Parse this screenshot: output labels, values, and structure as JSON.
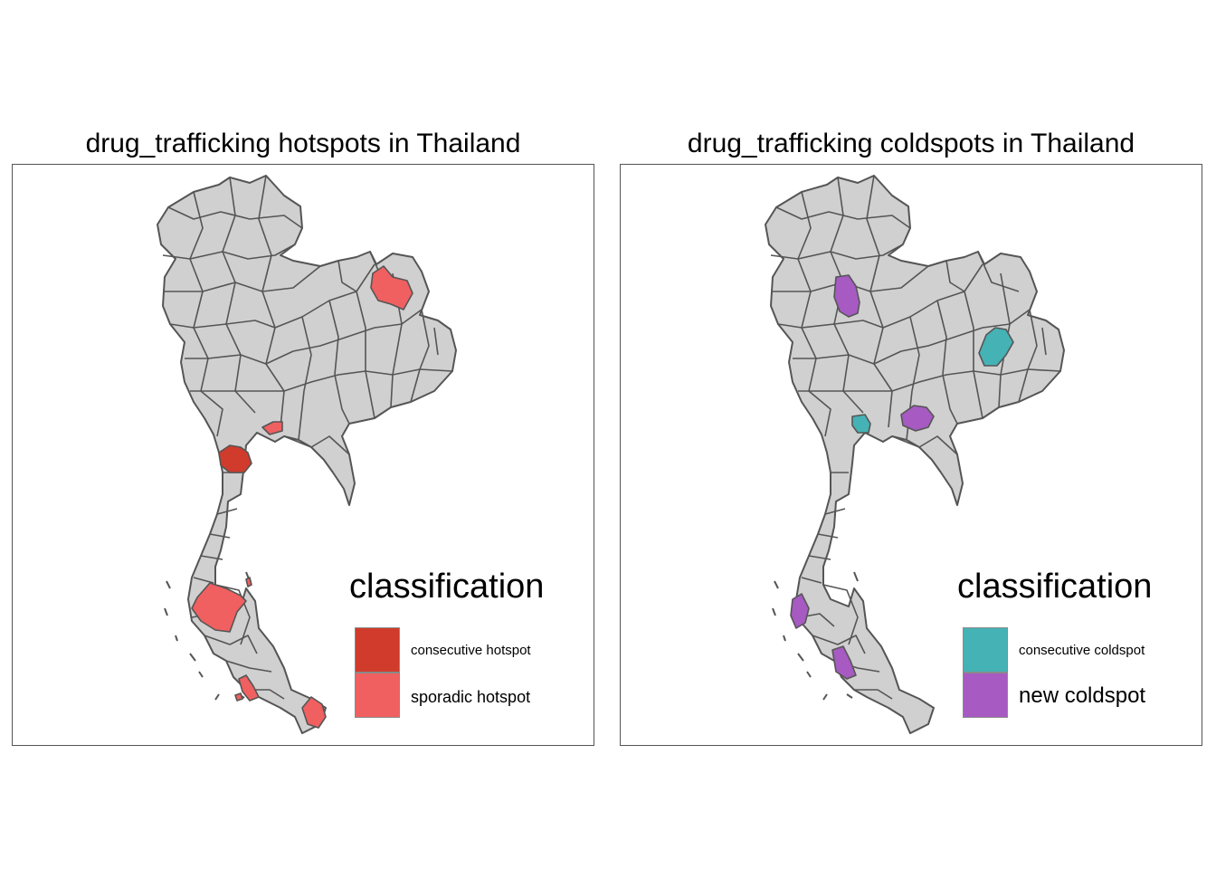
{
  "maps": [
    {
      "title": "drug_trafficking hotspots in Thailand",
      "legend": {
        "title": "classification",
        "items": [
          {
            "label": "consecutive hotspot",
            "color": "#d03b2c"
          },
          {
            "label": "sporadic hotspot",
            "color": "#f06060"
          }
        ]
      },
      "highlighted_provinces": [
        {
          "region": "northeast-north",
          "class": "sporadic hotspot"
        },
        {
          "region": "central-east-small",
          "class": "sporadic hotspot"
        },
        {
          "region": "west-central",
          "class": "consecutive hotspot"
        },
        {
          "region": "south-upper",
          "class": "sporadic hotspot"
        },
        {
          "region": "south-lower-west",
          "class": "sporadic hotspot"
        },
        {
          "region": "south-far-east",
          "class": "sporadic hotspot"
        }
      ]
    },
    {
      "title": "drug_trafficking coldspots in Thailand",
      "legend": {
        "title": "classification",
        "items": [
          {
            "label": "consecutive coldspot",
            "color": "#45b2b5"
          },
          {
            "label": "new coldspot",
            "color": "#a65ac2"
          }
        ]
      },
      "highlighted_provinces": [
        {
          "region": "north-central",
          "class": "new coldspot"
        },
        {
          "region": "northeast-center",
          "class": "consecutive coldspot"
        },
        {
          "region": "central",
          "class": "consecutive coldspot"
        },
        {
          "region": "central-east",
          "class": "new coldspot"
        },
        {
          "region": "south-west-coast",
          "class": "new coldspot"
        },
        {
          "region": "south-center",
          "class": "new coldspot"
        }
      ]
    }
  ],
  "colors": {
    "land": "#d0d0d0",
    "border": "#555555",
    "frame": "#555555"
  }
}
